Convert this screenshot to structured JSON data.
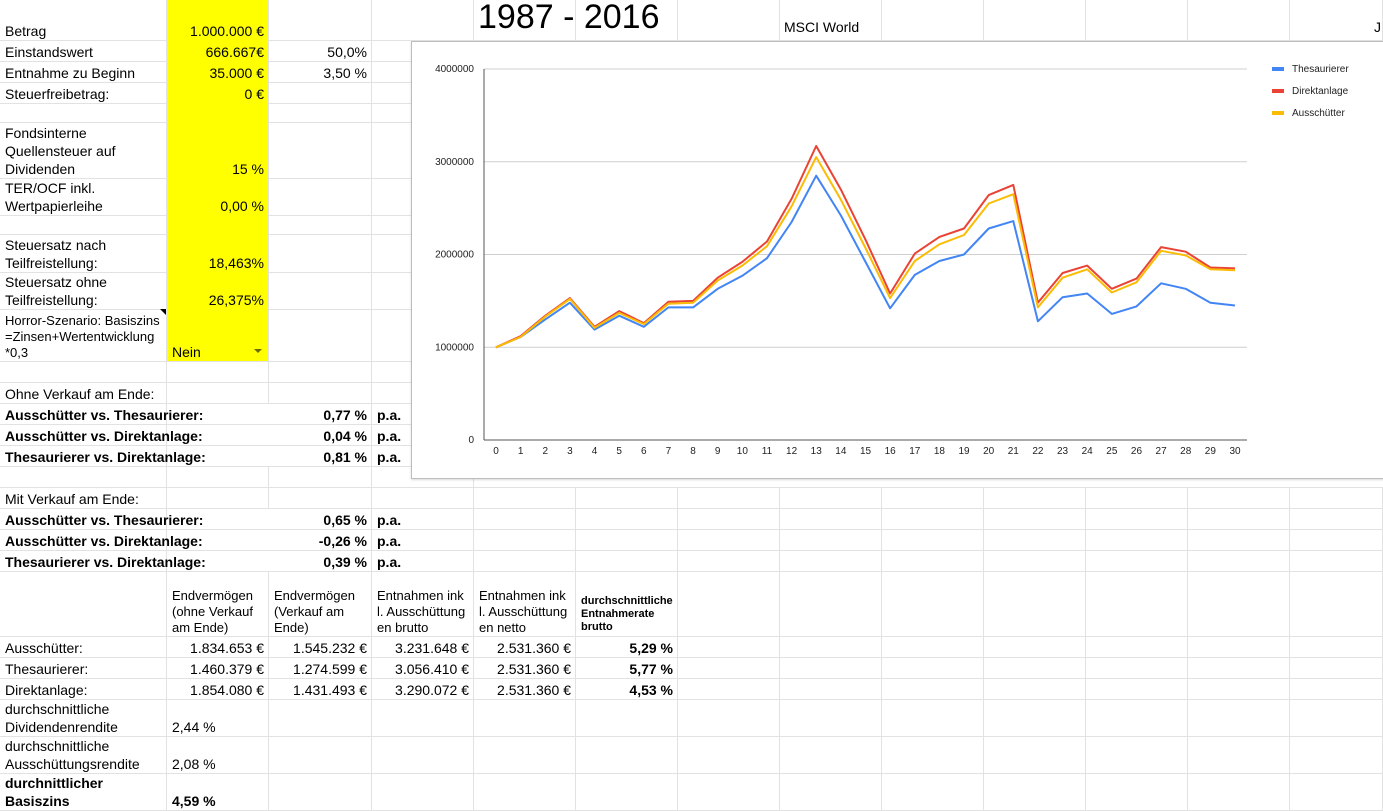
{
  "title": "1987 - 2016",
  "subtitle": "MSCI World",
  "cut_label": "J",
  "inputs": {
    "betrag_label": "Betrag",
    "betrag_value": "1.000.000 €",
    "einstandswert_label": "Einstandswert",
    "einstandswert_value": "666.667€",
    "einstandswert_pct": "50,0%",
    "entnahme_label": "Entnahme zu Beginn",
    "entnahme_value": "35.000 €",
    "entnahme_pct": "3,50 %",
    "steuerfrei_label": "Steuerfreibetrag:",
    "steuerfrei_value": "0 €",
    "quellensteuer_label": "Fondsinterne Quellensteuer auf Dividenden",
    "quellensteuer_value": "15 %",
    "ter_label": "TER/OCF inkl. Wertpapierleihe",
    "ter_value": "0,00 %",
    "steuersatz_nach_label": "Steuersatz nach Teilfreistellung:",
    "steuersatz_nach_value": "18,463%",
    "steuersatz_ohne_label": "Steuersatz ohne Teilfreistellung:",
    "steuersatz_ohne_value": "26,375%",
    "horror_label": "Horror-Szenario: Basiszins=Zinsen+Wertentwicklung *0,3",
    "horror_value": "Nein"
  },
  "ohne_verkauf": {
    "heading": "Ohne Verkauf am Ende:",
    "rows": [
      {
        "label": "Ausschütter vs. Thesaurierer:",
        "value": "0,77 %",
        "unit": "p.a."
      },
      {
        "label": "Ausschütter vs. Direktanlage:",
        "value": "0,04 %",
        "unit": "p.a."
      },
      {
        "label": "Thesaurierer vs. Direktanlage:",
        "value": "0,81 %",
        "unit": "p.a."
      }
    ]
  },
  "mit_verkauf": {
    "heading": "Mit Verkauf am Ende:",
    "rows": [
      {
        "label": "Ausschütter vs. Thesaurierer:",
        "value": "0,65 %",
        "unit": "p.a."
      },
      {
        "label": "Ausschütter vs. Direktanlage:",
        "value": "-0,26 %",
        "unit": "p.a."
      },
      {
        "label": "Thesaurierer vs. Direktanlage:",
        "value": "0,39 %",
        "unit": "p.a."
      }
    ]
  },
  "table": {
    "headers": [
      "Endvermögen (ohne Verkauf am Ende)",
      "Endvermögen (Verkauf am Ende)",
      "Entnahmen inkl. Ausschüttungen brutto",
      "Entnahmen inkl. Ausschüttungen netto",
      "durchschnittliche Entnahmerate brutto"
    ],
    "rows": [
      {
        "label": "Ausschütter:",
        "values": [
          "1.834.653 €",
          "1.545.232 €",
          "3.231.648 €",
          "2.531.360 €",
          "5,29 %"
        ]
      },
      {
        "label": "Thesaurierer:",
        "values": [
          "1.460.379 €",
          "1.274.599 €",
          "3.056.410 €",
          "2.531.360 €",
          "5,77 %"
        ]
      },
      {
        "label": "Direktanlage:",
        "values": [
          "1.854.080 €",
          "1.431.493 €",
          "3.290.072 €",
          "2.531.360 €",
          "4,53 %"
        ]
      }
    ]
  },
  "stats": [
    {
      "label": "durchschnittliche Dividendenrendite",
      "value": "2,44 %"
    },
    {
      "label": "durchschnittliche Ausschüttungsrendite",
      "value": "2,08 %"
    },
    {
      "label": "durchnittlicher Basiszins",
      "value": "4,59 %"
    }
  ],
  "chart_data": {
    "type": "line",
    "title": "",
    "xlabel": "",
    "ylabel": "",
    "x": [
      0,
      1,
      2,
      3,
      4,
      5,
      6,
      7,
      8,
      9,
      10,
      11,
      12,
      13,
      14,
      15,
      16,
      17,
      18,
      19,
      20,
      21,
      22,
      23,
      24,
      25,
      26,
      27,
      28,
      29,
      30
    ],
    "yticks": [
      0,
      1000000,
      2000000,
      3000000,
      4000000
    ],
    "ylim": [
      0,
      4000000
    ],
    "grid": true,
    "legend_position": "right",
    "series": [
      {
        "name": "Thesaurierer",
        "color": "#4285f4",
        "values": [
          1000000,
          1110000,
          1300000,
          1480000,
          1190000,
          1340000,
          1220000,
          1430000,
          1430000,
          1630000,
          1770000,
          1960000,
          2350000,
          2850000,
          2420000,
          1920000,
          1420000,
          1780000,
          1930000,
          2000000,
          2280000,
          2360000,
          1280000,
          1540000,
          1580000,
          1360000,
          1440000,
          1690000,
          1630000,
          1480000,
          1450000
        ]
      },
      {
        "name": "Direktanlage",
        "color": "#ea4335",
        "values": [
          1000000,
          1120000,
          1340000,
          1530000,
          1220000,
          1390000,
          1260000,
          1490000,
          1500000,
          1750000,
          1920000,
          2140000,
          2600000,
          3170000,
          2700000,
          2160000,
          1580000,
          2010000,
          2190000,
          2280000,
          2640000,
          2750000,
          1480000,
          1800000,
          1880000,
          1630000,
          1740000,
          2080000,
          2030000,
          1860000,
          1850000
        ]
      },
      {
        "name": "Ausschütter",
        "color": "#fbbc04",
        "values": [
          1000000,
          1110000,
          1330000,
          1520000,
          1210000,
          1370000,
          1250000,
          1470000,
          1480000,
          1720000,
          1880000,
          2090000,
          2520000,
          3050000,
          2590000,
          2070000,
          1530000,
          1930000,
          2110000,
          2210000,
          2550000,
          2650000,
          1430000,
          1750000,
          1840000,
          1590000,
          1700000,
          2040000,
          1990000,
          1840000,
          1830000
        ]
      }
    ]
  }
}
